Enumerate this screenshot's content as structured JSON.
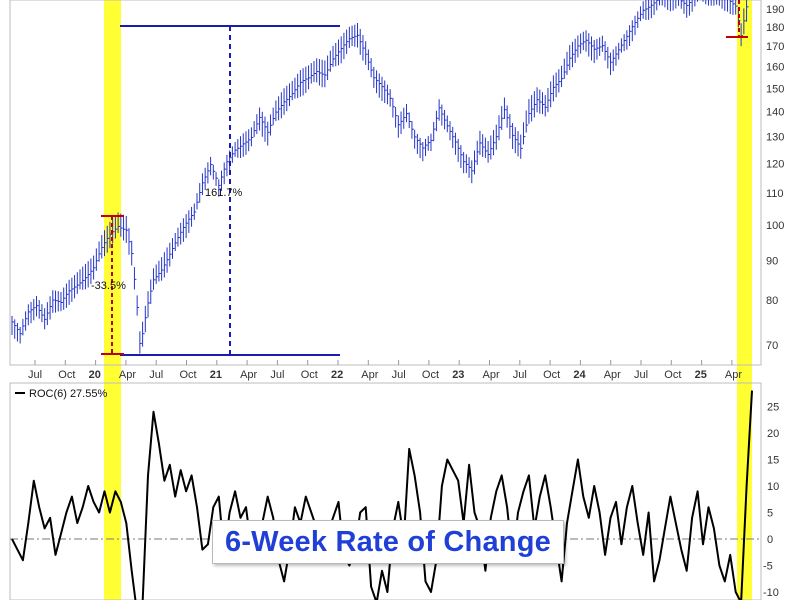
{
  "chart_data": [
    {
      "type": "line",
      "panel": "price",
      "y_scale": "log",
      "ylim": [
        66,
        195
      ],
      "y_ticks": [
        70,
        80,
        90,
        100,
        110,
        120,
        130,
        140,
        150,
        160,
        170,
        180,
        190
      ],
      "x_tick_labels": [
        "Jul",
        "Oct",
        "20",
        "Apr",
        "Jul",
        "Oct",
        "21",
        "Apr",
        "Jul",
        "Oct",
        "22",
        "Apr",
        "Jul",
        "Oct",
        "23",
        "Apr",
        "Jul",
        "Oct",
        "24",
        "Apr",
        "Jul",
        "Oct",
        "25",
        "Apr"
      ],
      "series": [
        {
          "style": "weekly-bars",
          "color": "#2434c8",
          "points": [
            [
              0,
              75
            ],
            [
              3,
              72
            ],
            [
              6,
              77
            ],
            [
              9,
              79
            ],
            [
              12,
              76
            ],
            [
              15,
              80
            ],
            [
              18,
              79
            ],
            [
              21,
              82
            ],
            [
              24,
              84
            ],
            [
              27,
              86
            ],
            [
              30,
              88
            ],
            [
              33,
              93
            ],
            [
              36,
              97
            ],
            [
              39,
              100
            ],
            [
              42,
              99
            ],
            [
              44,
              92
            ],
            [
              46,
              78
            ],
            [
              47,
              70
            ],
            [
              48,
              72
            ],
            [
              50,
              79
            ],
            [
              52,
              85
            ],
            [
              55,
              88
            ],
            [
              58,
              92
            ],
            [
              61,
              96
            ],
            [
              64,
              100
            ],
            [
              67,
              104
            ],
            [
              70,
              114
            ],
            [
              73,
              120
            ],
            [
              76,
              112
            ],
            [
              79,
              120
            ],
            [
              82,
              125
            ],
            [
              85,
              128
            ],
            [
              88,
              130
            ],
            [
              91,
              137
            ],
            [
              94,
              131
            ],
            [
              97,
              140
            ],
            [
              100,
              145
            ],
            [
              103,
              148
            ],
            [
              106,
              152
            ],
            [
              109,
              154
            ],
            [
              112,
              158
            ],
            [
              115,
              157
            ],
            [
              118,
              164
            ],
            [
              121,
              168
            ],
            [
              124,
              173
            ],
            [
              127,
              176
            ],
            [
              130,
              167
            ],
            [
              133,
              155
            ],
            [
              136,
              150
            ],
            [
              139,
              145
            ],
            [
              142,
              135
            ],
            [
              145,
              140
            ],
            [
              148,
              130
            ],
            [
              151,
              125
            ],
            [
              154,
              128
            ],
            [
              157,
              142
            ],
            [
              160,
              135
            ],
            [
              163,
              128
            ],
            [
              166,
              120
            ],
            [
              169,
              117
            ],
            [
              172,
              128
            ],
            [
              175,
              124
            ],
            [
              178,
              130
            ],
            [
              181,
              140
            ],
            [
              184,
              130
            ],
            [
              187,
              126
            ],
            [
              190,
              140
            ],
            [
              193,
              145
            ],
            [
              196,
              141
            ],
            [
              199,
              150
            ],
            [
              202,
              155
            ],
            [
              205,
              165
            ],
            [
              208,
              170
            ],
            [
              211,
              172
            ],
            [
              214,
              168
            ],
            [
              217,
              171
            ],
            [
              220,
              163
            ],
            [
              223,
              168
            ],
            [
              226,
              174
            ],
            [
              229,
              182
            ],
            [
              232,
              190
            ],
            [
              235,
              193
            ],
            [
              238,
              196
            ],
            [
              240,
              197
            ],
            [
              242,
              196
            ],
            [
              245,
              196
            ],
            [
              248,
              193
            ],
            [
              251,
              198
            ],
            [
              254,
              200
            ],
            [
              257,
              199
            ],
            [
              260,
              196
            ],
            [
              263,
              197
            ],
            [
              266,
              192
            ],
            [
              268,
              175
            ],
            [
              270,
              190
            ],
            [
              271,
              195
            ]
          ]
        }
      ],
      "annotations": [
        {
          "text": "161.7%",
          "color": "#1a1aa0"
        },
        {
          "text": "-33.5%",
          "color": "#c00000"
        }
      ],
      "highlight_bands_color": "#ffff33"
    },
    {
      "type": "line",
      "panel": "indicator",
      "legend": "ROC(6) 27.55%",
      "title": "6-Week Rate of Change",
      "ylim": [
        -10,
        28
      ],
      "y_ticks": [
        25,
        20,
        15,
        10,
        5,
        0,
        -5,
        -10
      ],
      "series": [
        {
          "name": "ROC(6)",
          "color": "#000000",
          "points": [
            [
              0,
              0
            ],
            [
              2,
              -2
            ],
            [
              4,
              -4
            ],
            [
              6,
              3
            ],
            [
              8,
              11
            ],
            [
              10,
              6
            ],
            [
              12,
              2
            ],
            [
              14,
              4
            ],
            [
              16,
              -3
            ],
            [
              18,
              1
            ],
            [
              20,
              5
            ],
            [
              22,
              8
            ],
            [
              24,
              3
            ],
            [
              26,
              6
            ],
            [
              28,
              10
            ],
            [
              30,
              7
            ],
            [
              32,
              5
            ],
            [
              34,
              9
            ],
            [
              36,
              5
            ],
            [
              38,
              9
            ],
            [
              40,
              7
            ],
            [
              42,
              3
            ],
            [
              44,
              -6
            ],
            [
              46,
              -14
            ],
            [
              48,
              -12
            ],
            [
              50,
              12
            ],
            [
              52,
              24
            ],
            [
              54,
              18
            ],
            [
              56,
              11
            ],
            [
              58,
              14
            ],
            [
              60,
              8
            ],
            [
              62,
              13
            ],
            [
              64,
              9
            ],
            [
              66,
              12
            ],
            [
              68,
              6
            ],
            [
              70,
              -2
            ],
            [
              72,
              -1
            ],
            [
              74,
              6
            ],
            [
              76,
              8
            ],
            [
              78,
              -3
            ],
            [
              80,
              5
            ],
            [
              82,
              9
            ],
            [
              84,
              4
            ],
            [
              86,
              6
            ],
            [
              88,
              -2
            ],
            [
              90,
              -4
            ],
            [
              92,
              3
            ],
            [
              94,
              8
            ],
            [
              96,
              4
            ],
            [
              98,
              -4
            ],
            [
              100,
              -8
            ],
            [
              102,
              -2
            ],
            [
              104,
              6
            ],
            [
              106,
              3
            ],
            [
              108,
              8
            ],
            [
              110,
              5
            ],
            [
              112,
              2
            ],
            [
              114,
              -4
            ],
            [
              116,
              1
            ],
            [
              118,
              4
            ],
            [
              120,
              7
            ],
            [
              122,
              -3
            ],
            [
              124,
              -5
            ],
            [
              126,
              -2
            ],
            [
              128,
              5
            ],
            [
              130,
              6
            ],
            [
              132,
              -9
            ],
            [
              134,
              -12
            ],
            [
              136,
              -6
            ],
            [
              138,
              -10
            ],
            [
              140,
              2
            ],
            [
              142,
              7
            ],
            [
              144,
              0
            ],
            [
              146,
              17
            ],
            [
              148,
              12
            ],
            [
              150,
              5
            ],
            [
              152,
              -8
            ],
            [
              154,
              -10
            ],
            [
              156,
              -4
            ],
            [
              158,
              10
            ],
            [
              160,
              15
            ],
            [
              162,
              13
            ],
            [
              164,
              11
            ],
            [
              166,
              3
            ],
            [
              168,
              14
            ],
            [
              170,
              5
            ],
            [
              172,
              2
            ],
            [
              174,
              -6
            ],
            [
              176,
              4
            ],
            [
              178,
              9
            ],
            [
              180,
              12
            ],
            [
              182,
              6
            ],
            [
              184,
              -4
            ],
            [
              186,
              5
            ],
            [
              188,
              9
            ],
            [
              190,
              12
            ],
            [
              192,
              2
            ],
            [
              194,
              8
            ],
            [
              196,
              12
            ],
            [
              198,
              6
            ],
            [
              200,
              -1
            ],
            [
              202,
              -8
            ],
            [
              204,
              3
            ],
            [
              206,
              9
            ],
            [
              208,
              15
            ],
            [
              210,
              8
            ],
            [
              212,
              4
            ],
            [
              214,
              10
            ],
            [
              216,
              5
            ],
            [
              218,
              -3
            ],
            [
              220,
              4
            ],
            [
              222,
              7
            ],
            [
              224,
              -1
            ],
            [
              226,
              6
            ],
            [
              228,
              10
            ],
            [
              230,
              3
            ],
            [
              232,
              -3
            ],
            [
              234,
              5
            ],
            [
              236,
              -8
            ],
            [
              238,
              -4
            ],
            [
              240,
              2
            ],
            [
              242,
              8
            ],
            [
              244,
              3
            ],
            [
              246,
              -2
            ],
            [
              248,
              -6
            ],
            [
              250,
              4
            ],
            [
              252,
              9
            ],
            [
              254,
              -1
            ],
            [
              256,
              6
            ],
            [
              258,
              2
            ],
            [
              260,
              -5
            ],
            [
              262,
              -8
            ],
            [
              264,
              -3
            ],
            [
              266,
              -10
            ],
            [
              268,
              -12
            ],
            [
              270,
              10
            ],
            [
              272,
              28
            ]
          ]
        }
      ]
    }
  ]
}
